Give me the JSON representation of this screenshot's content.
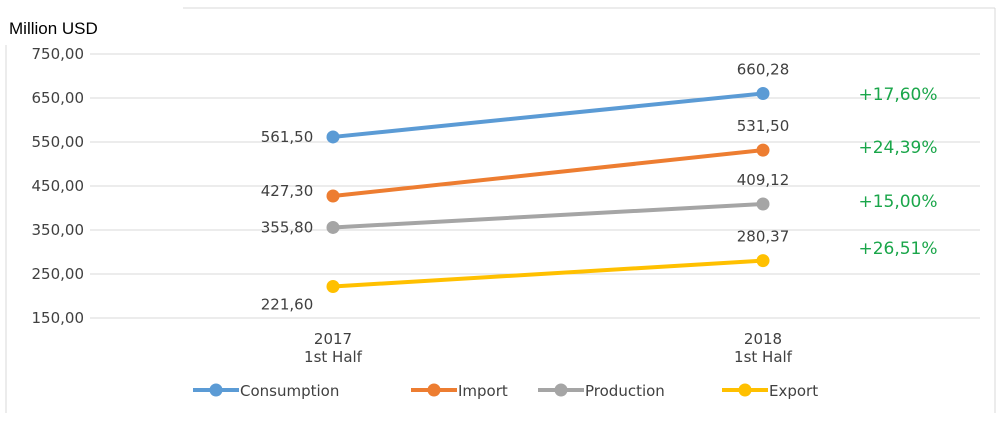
{
  "chart_data": {
    "type": "line",
    "ylabel": "Million USD",
    "ylim": [
      150,
      750
    ],
    "yticks": [
      "750,00",
      "650,00",
      "550,00",
      "450,00",
      "350,00",
      "250,00",
      "150,00"
    ],
    "categories": [
      {
        "line1": "2017",
        "line2": "1st Half"
      },
      {
        "line1": "2018",
        "line2": "1st Half"
      }
    ],
    "grid": "horizontal",
    "legend_position": "bottom",
    "series": [
      {
        "name": "Consumption",
        "color": "#5b9bd5",
        "values": [
          561.5,
          660.28
        ],
        "labels": [
          "561,50",
          "660,28"
        ],
        "change": "+17,60%"
      },
      {
        "name": "Import",
        "color": "#ed7d31",
        "values": [
          427.3,
          531.5
        ],
        "labels": [
          "427,30",
          "531,50"
        ],
        "change": "+24,39%"
      },
      {
        "name": "Production",
        "color": "#a5a5a5",
        "values": [
          355.8,
          409.12
        ],
        "labels": [
          "355,80",
          "409,12"
        ],
        "change": "+15,00%"
      },
      {
        "name": "Export",
        "color": "#ffc000",
        "values": [
          221.6,
          280.37
        ],
        "labels": [
          "221,60",
          "280,37"
        ],
        "change": "+26,51%"
      }
    ]
  }
}
